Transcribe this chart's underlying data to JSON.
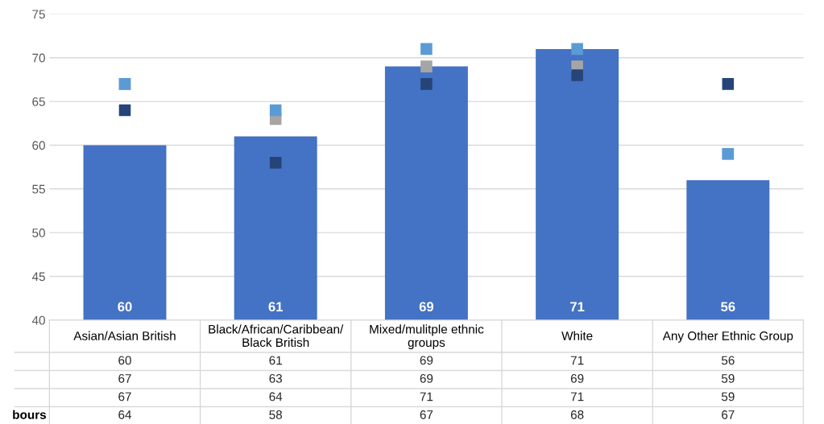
{
  "chart_data": {
    "type": "bar",
    "categories": [
      "Asian/Asian British",
      "Black/African/Caribbean/\nBlack British",
      "Mixed/mulitple ethnic\ngroups",
      "White",
      "Any Other Ethnic Group"
    ],
    "series": [
      {
        "type": "bar",
        "color": "#4472c4",
        "values": [
          60,
          61,
          69,
          71,
          56
        ]
      },
      {
        "type": "scatter",
        "color": "#a5a5a5",
        "values": [
          67,
          63,
          69,
          69,
          59
        ]
      },
      {
        "type": "scatter",
        "color": "#5b9bd5",
        "values": [
          67,
          64,
          71,
          71,
          59
        ]
      },
      {
        "type": "scatter",
        "name": "bours",
        "color": "#264478",
        "values": [
          64,
          58,
          67,
          68,
          67
        ]
      }
    ],
    "ylim": [
      40,
      75
    ],
    "yticks": [
      40,
      45,
      50,
      55,
      60,
      65,
      70,
      75
    ],
    "annotations": [
      {
        "text": "60",
        "x": "Asian/Asian British",
        "y": 40
      },
      {
        "text": "61",
        "x": "Black/African/Caribbean/\nBlack British",
        "y": 40
      },
      {
        "text": "69",
        "x": "Mixed/mulitple ethnic\ngroups",
        "y": 40
      },
      {
        "text": "71",
        "x": "White",
        "y": 40
      },
      {
        "text": "56",
        "x": "Any Other Ethnic Group",
        "y": 40
      }
    ],
    "grid": "y",
    "marker": "square",
    "data_labels": true,
    "legend": false
  }
}
